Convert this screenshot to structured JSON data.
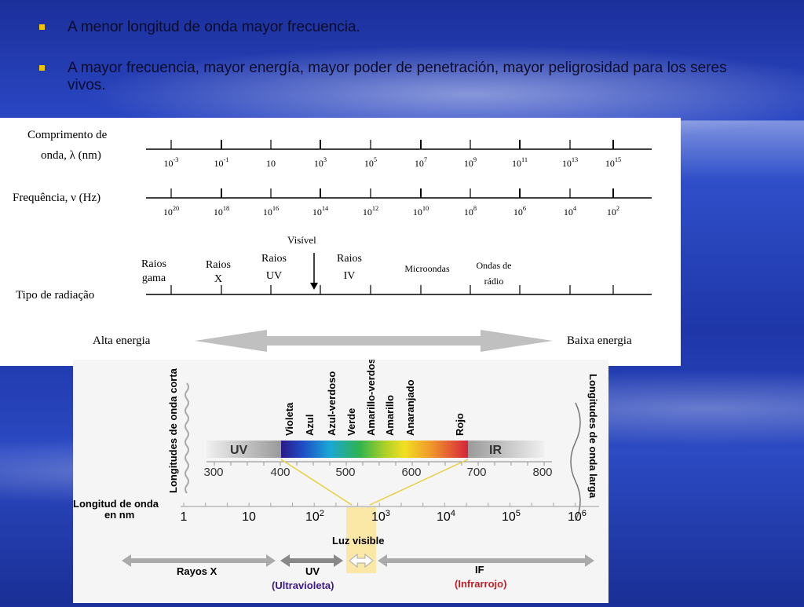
{
  "bullets": [
    "A menor longitud de onda mayor frecuencia.",
    "A mayor frecuencia, mayor energía, mayor poder de penetración, mayor peligrosidad para los seres vivos."
  ],
  "diagram1": {
    "wavelength_label_1": "Comprimento de",
    "wavelength_label_2": "onda, λ (nm)",
    "wavelength_ticks": [
      "10-3",
      "10-1",
      "10",
      "103",
      "105",
      "107",
      "109",
      "1011",
      "1013",
      "1015"
    ],
    "frequency_label": "Frequência, ν (Hz)",
    "frequency_ticks": [
      "1020",
      "1018",
      "1016",
      "1014",
      "1012",
      "1010",
      "108",
      "106",
      "104",
      "102"
    ],
    "visible_label": "Visível",
    "radiation_label": "Tipo de radiação",
    "types": [
      {
        "l1": "Raios",
        "l2": "gama"
      },
      {
        "l1": "Raios",
        "l2": "X"
      },
      {
        "l1": "Raios",
        "l2": "UV"
      },
      {
        "l1": "Raios",
        "l2": "IV"
      },
      {
        "l1": "Microondas",
        "l2": ""
      },
      {
        "l1": "Ondas de",
        "l2": "rádio"
      }
    ],
    "high_energy": "Alta energia",
    "low_energy": "Baixa energia"
  },
  "diagram2": {
    "short_waves": "Longitudes de onda corta",
    "long_waves": "Longitudes de onda larga",
    "colors": [
      "Violeta",
      "Azul",
      "Azul-verdoso",
      "Verde",
      "Amarillo-verdoso",
      "Amarillo",
      "Anaranjado",
      "Rojo"
    ],
    "uv": "UV",
    "ir": "IR",
    "scale_nm": [
      "300",
      "400",
      "500",
      "600",
      "700",
      "800"
    ],
    "wavelength_nm_1": "Longitud de onda",
    "wavelength_nm_2": "en nm",
    "log_scale": [
      "1",
      "10",
      "102",
      "103",
      "104",
      "105",
      "106"
    ],
    "visible_light": "Luz visible",
    "xrays": "Rayos X",
    "uv_label": "UV",
    "uv_full": "(Ultravioleta)",
    "if_label": "IF",
    "if_full": "(Infrarrojo)"
  }
}
